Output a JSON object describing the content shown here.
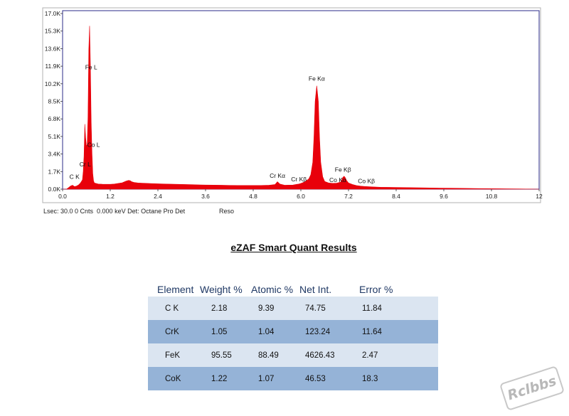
{
  "chart_data": {
    "type": "line",
    "x": [
      0.0,
      0.1,
      0.15,
      0.2,
      0.25,
      0.28,
      0.3,
      0.35,
      0.4,
      0.45,
      0.5,
      0.52,
      0.54,
      0.56,
      0.58,
      0.6,
      0.62,
      0.64,
      0.66,
      0.68,
      0.7,
      0.72,
      0.74,
      0.76,
      0.78,
      0.8,
      0.85,
      0.9,
      1.0,
      1.1,
      1.2,
      1.3,
      1.4,
      1.5,
      1.6,
      1.66,
      1.7,
      1.74,
      1.8,
      1.9,
      2.0,
      2.2,
      2.4,
      2.6,
      2.8,
      3.0,
      3.2,
      3.4,
      3.6,
      3.8,
      4.0,
      4.2,
      4.4,
      4.6,
      4.8,
      5.0,
      5.2,
      5.35,
      5.41,
      5.47,
      5.6,
      5.8,
      5.9,
      5.95,
      6.0,
      6.1,
      6.2,
      6.25,
      6.3,
      6.33,
      6.36,
      6.4,
      6.44,
      6.47,
      6.5,
      6.55,
      6.6,
      6.7,
      6.8,
      6.9,
      7.0,
      7.03,
      7.06,
      7.09,
      7.12,
      7.15,
      7.2,
      7.3,
      7.4,
      7.5,
      7.6,
      7.8,
      8.0,
      8.5,
      9.0,
      9.5,
      10.0,
      10.5,
      11.0,
      11.5,
      12.0
    ],
    "y": [
      0,
      0,
      150,
      300,
      380,
      300,
      250,
      300,
      400,
      600,
      900,
      1700,
      3200,
      6300,
      5000,
      4200,
      4300,
      7000,
      13500,
      15800,
      12000,
      6500,
      3500,
      1500,
      800,
      600,
      550,
      500,
      480,
      470,
      470,
      500,
      560,
      620,
      780,
      850,
      820,
      720,
      650,
      600,
      580,
      550,
      520,
      500,
      480,
      460,
      440,
      420,
      400,
      390,
      380,
      370,
      360,
      360,
      360,
      360,
      380,
      450,
      720,
      500,
      380,
      400,
      470,
      500,
      560,
      700,
      1000,
      1400,
      2600,
      5000,
      8500,
      10000,
      8500,
      5000,
      2600,
      1200,
      750,
      600,
      560,
      580,
      680,
      900,
      1150,
      1250,
      1100,
      850,
      600,
      450,
      350,
      300,
      260,
      220,
      190,
      160,
      130,
      100,
      80,
      60,
      40,
      20,
      0
    ],
    "xlim": [
      0,
      12
    ],
    "ylim": [
      0,
      17000
    ],
    "x_ticks": [
      "0.0",
      "1.2",
      "2.4",
      "3.6",
      "4.8",
      "6.0",
      "7.2",
      "8.4",
      "9.6",
      "10.8",
      "12"
    ],
    "y_ticks": [
      "0.0K",
      "1.7K",
      "3.4K",
      "5.1K",
      "6.8K",
      "8.5K",
      "10.2K",
      "11.9K",
      "13.6K",
      "15.3K",
      "17.0K"
    ],
    "grid": false,
    "series_color": "#e8000b",
    "annotations": [
      {
        "label": "C  K",
        "x": 0.3,
        "y": 1000
      },
      {
        "label": "Cr L",
        "x": 0.57,
        "y": 2200
      },
      {
        "label": "Co L",
        "x": 0.78,
        "y": 4100
      },
      {
        "label": "Fe L",
        "x": 0.72,
        "y": 11600
      },
      {
        "label": "Cr Kα",
        "x": 5.41,
        "y": 1100
      },
      {
        "label": "Cr Kβ",
        "x": 5.95,
        "y": 750
      },
      {
        "label": "Fe Kα",
        "x": 6.4,
        "y": 10500
      },
      {
        "label": "Co Kα",
        "x": 6.93,
        "y": 700
      },
      {
        "label": "Fe Kβ",
        "x": 7.06,
        "y": 1700
      },
      {
        "label": "Co Kβ",
        "x": 7.65,
        "y": 600
      }
    ]
  },
  "footer": {
    "left": "Lsec: 30.0 0 Cnts  0.000 keV Det: Octane Pro Det",
    "right": "Reso"
  },
  "results": {
    "title": "eZAF Smart Quant Results",
    "headers": [
      "Element",
      "Weight %",
      "Atomic %",
      "Net Int.",
      "Error %"
    ],
    "rows": [
      [
        "C K",
        "2.18",
        "9.39",
        "74.75",
        "11.84"
      ],
      [
        "CrK",
        "1.05",
        "1.04",
        "123.24",
        "11.64"
      ],
      [
        "FeK",
        "95.55",
        "88.49",
        "4626.43",
        "2.47"
      ],
      [
        "CoK",
        "1.22",
        "1.07",
        "46.53",
        "18.3"
      ]
    ]
  },
  "watermark": "Rclbbs",
  "colors": {
    "row_light": "#dbe5f1",
    "row_dark": "#95b3d7",
    "header_text": "#1f3864",
    "frame": "#2b2b8a"
  }
}
